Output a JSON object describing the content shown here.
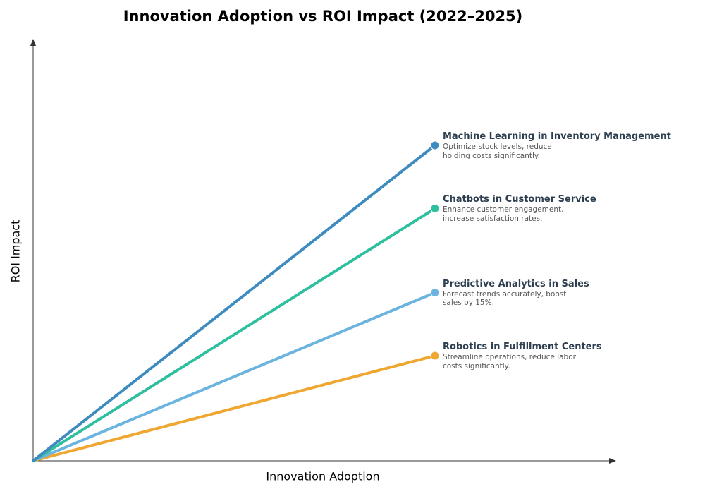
{
  "chart_data": {
    "type": "line",
    "title": "Innovation Adoption vs ROI Impact (2022–2025)",
    "x_label": "Innovation Adoption",
    "y_label": "ROI Impact",
    "x": [
      0,
      6.9
    ],
    "xlim": [
      0,
      10
    ],
    "ylim": [
      0,
      10
    ],
    "series": [
      {
        "name": "Machine Learning in Inventory Management",
        "description": "Optimize stock levels, reduce holding costs significantly.",
        "color": "#3d8bbf",
        "values": [
          0,
          7.5
        ]
      },
      {
        "name": "Chatbots in Customer Service",
        "description": "Enhance customer engagement, increase satisfaction rates.",
        "color": "#2ebf9f",
        "values": [
          0,
          6.0
        ]
      },
      {
        "name": "Predictive Analytics in Sales",
        "description": "Forecast trends accurately, boost sales by 15%.",
        "color": "#6cb4e0",
        "values": [
          0,
          4.0
        ]
      },
      {
        "name": "Robotics in Fulfillment Centers",
        "description": "Streamline operations, reduce labor costs significantly.",
        "color": "#f0a732",
        "values": [
          0,
          2.5
        ]
      }
    ]
  }
}
